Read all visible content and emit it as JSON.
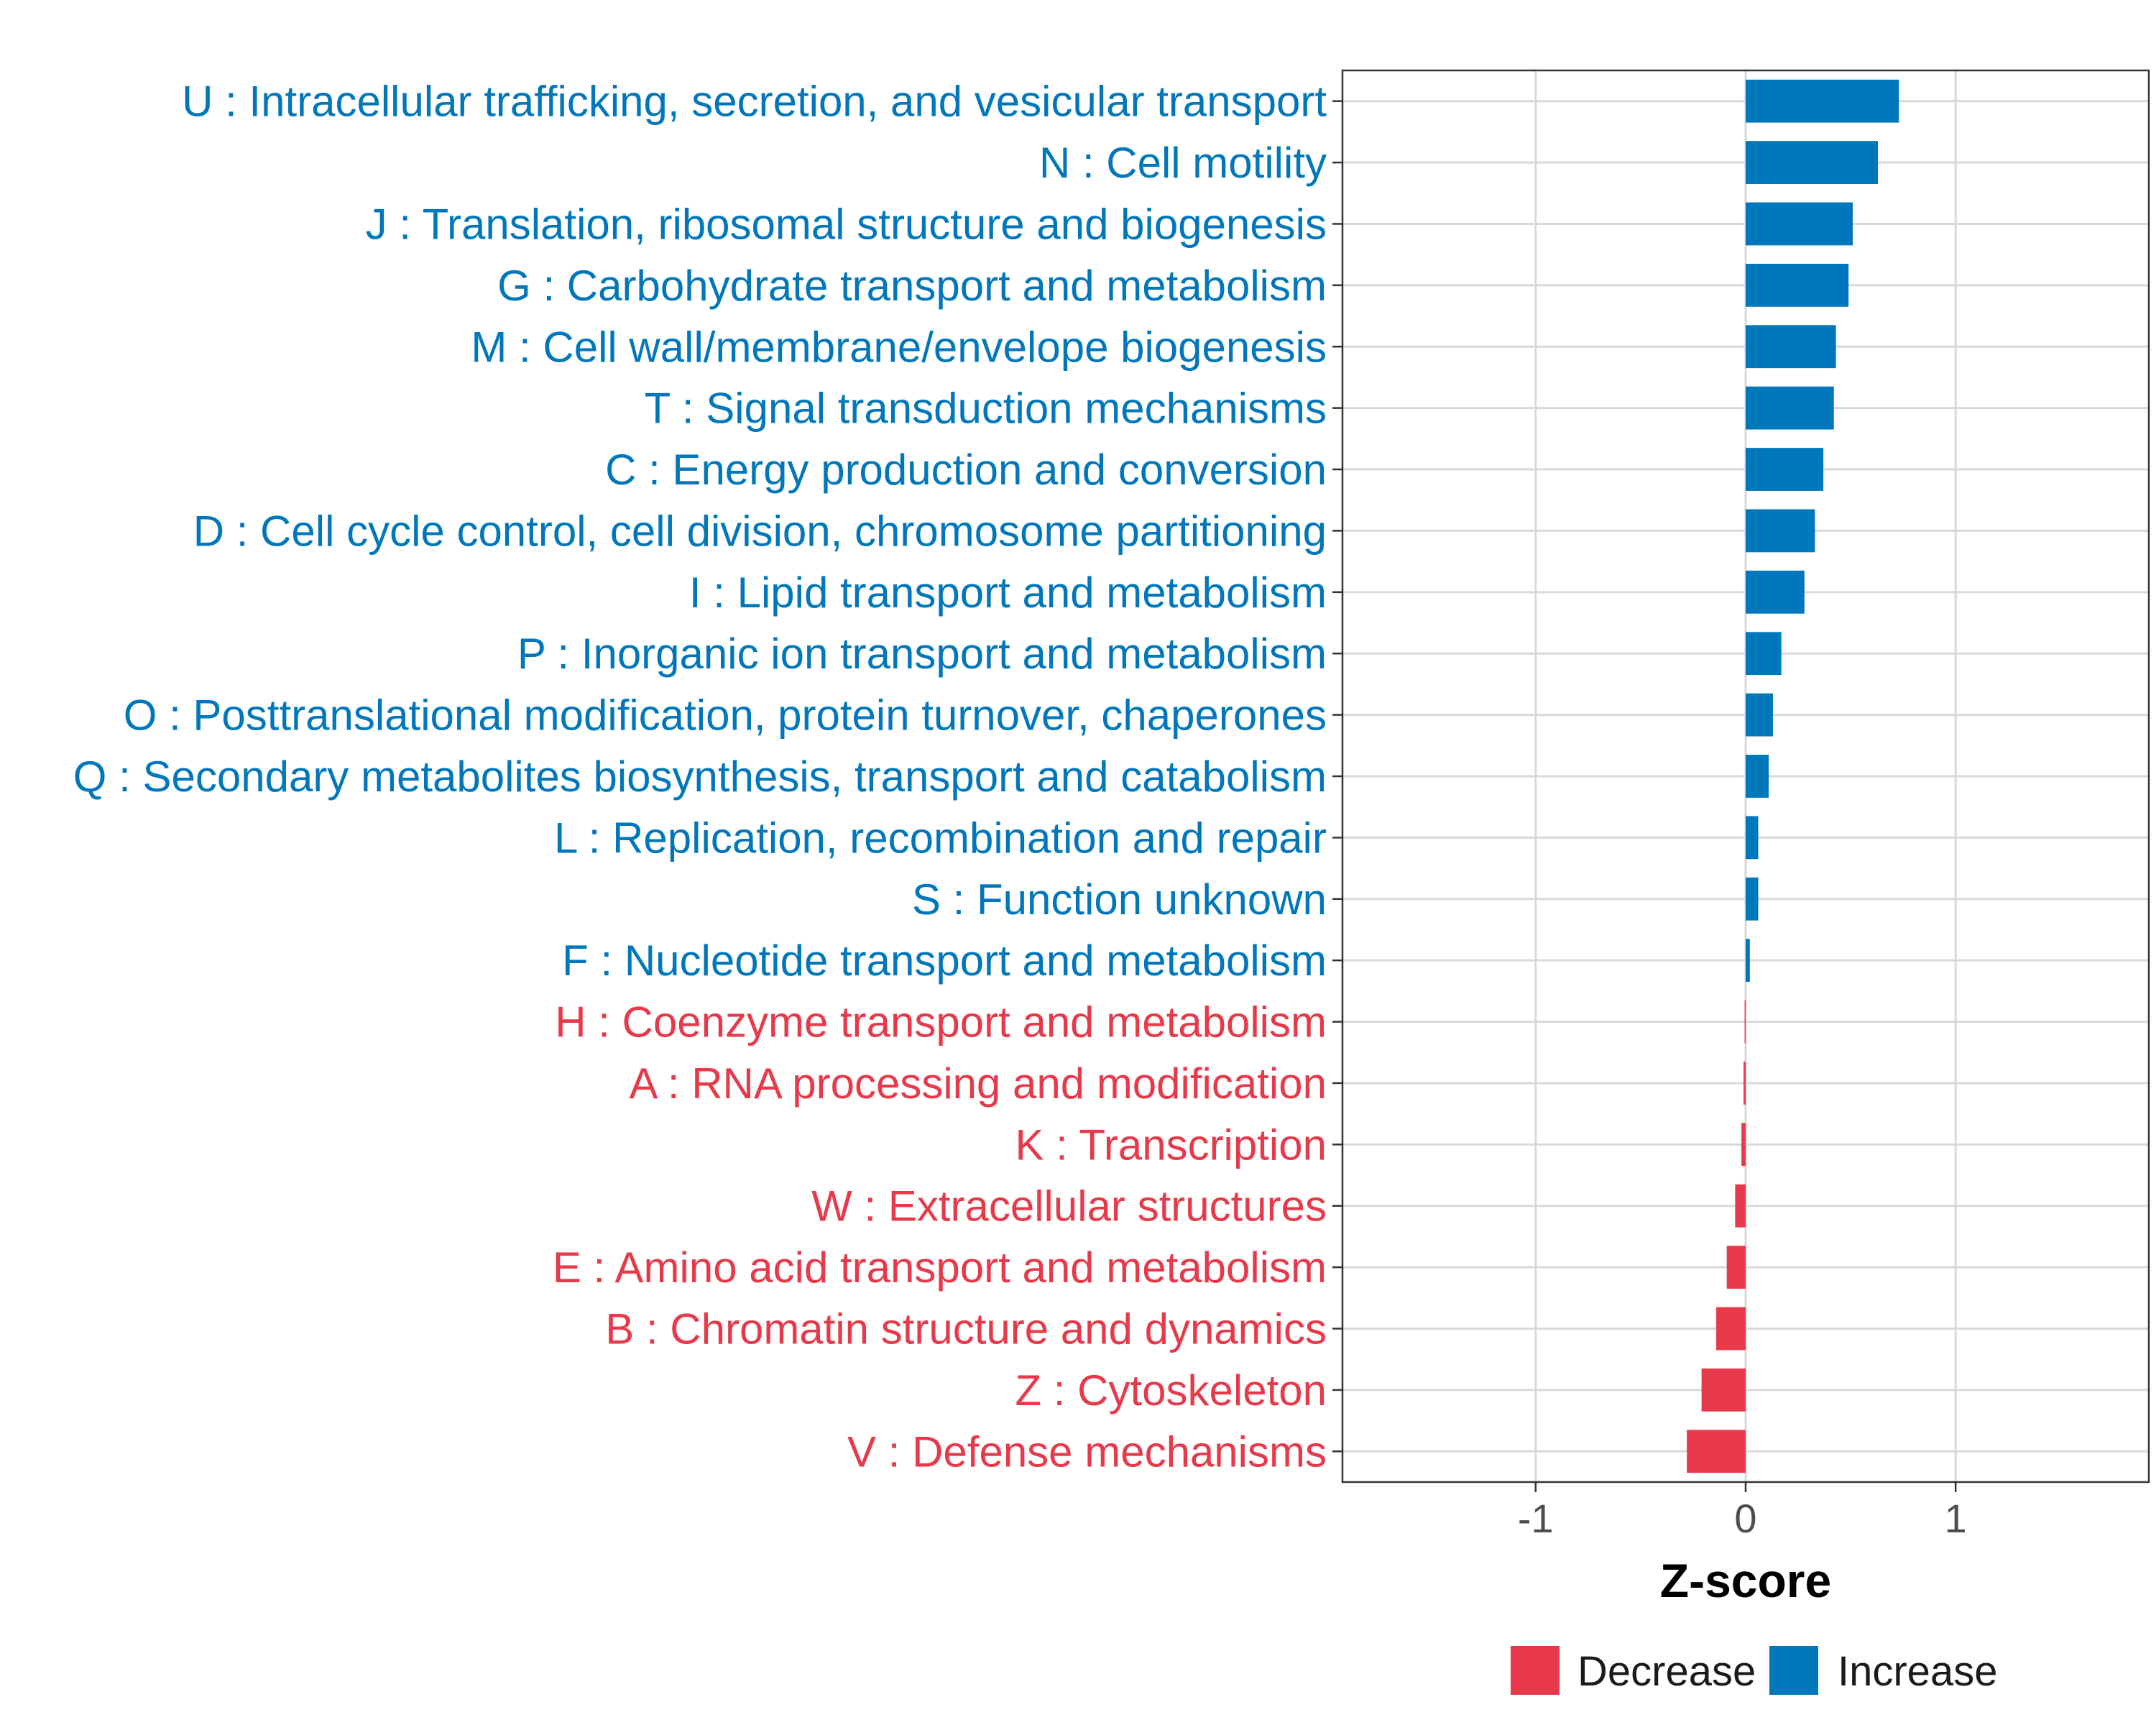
{
  "chart_data": {
    "type": "bar",
    "orientation": "horizontal",
    "title": "",
    "xlabel": "Z-score",
    "ylabel": "",
    "xlim": [
      -1.92,
      1.92
    ],
    "xticks": [
      -1,
      0,
      1
    ],
    "xtick_labels": [
      "-1",
      "0",
      "1"
    ],
    "grid": true,
    "legend_position": "bottom",
    "colors": {
      "Decrease": "#e8394a",
      "Increase": "#0077bb"
    },
    "categories": [
      "U : Intracellular trafficking, secretion, and vesicular transport",
      "N : Cell motility",
      "J : Translation, ribosomal structure and biogenesis",
      "G : Carbohydrate transport and metabolism",
      "M : Cell wall/membrane/envelope biogenesis",
      "T : Signal transduction mechanisms",
      "C : Energy production and conversion",
      "D : Cell cycle control, cell division, chromosome partitioning",
      "I : Lipid transport and metabolism",
      "P : Inorganic ion transport and metabolism",
      "O : Posttranslational modification, protein turnover, chaperones",
      "Q : Secondary metabolites biosynthesis, transport and catabolism",
      "L : Replication, recombination and repair",
      "S : Function unknown",
      "F : Nucleotide transport and metabolism",
      "H : Coenzyme transport and metabolism",
      "A : RNA processing and modification",
      "K : Transcription",
      "W : Extracellular structures",
      "E : Amino acid transport and metabolism",
      "B : Chromatin structure and dynamics",
      "Z : Cytoskeleton",
      "V : Defense mechanisms"
    ],
    "values": [
      0.73,
      0.63,
      0.51,
      0.49,
      0.43,
      0.42,
      0.37,
      0.33,
      0.28,
      0.17,
      0.13,
      0.11,
      0.06,
      0.06,
      0.02,
      -0.005,
      -0.01,
      -0.02,
      -0.05,
      -0.09,
      -0.14,
      -0.21,
      -0.28
    ],
    "groups": [
      "Increase",
      "Increase",
      "Increase",
      "Increase",
      "Increase",
      "Increase",
      "Increase",
      "Increase",
      "Increase",
      "Increase",
      "Increase",
      "Increase",
      "Increase",
      "Increase",
      "Increase",
      "Decrease",
      "Decrease",
      "Decrease",
      "Decrease",
      "Decrease",
      "Decrease",
      "Decrease",
      "Decrease"
    ],
    "legend": [
      "Decrease",
      "Increase"
    ]
  }
}
